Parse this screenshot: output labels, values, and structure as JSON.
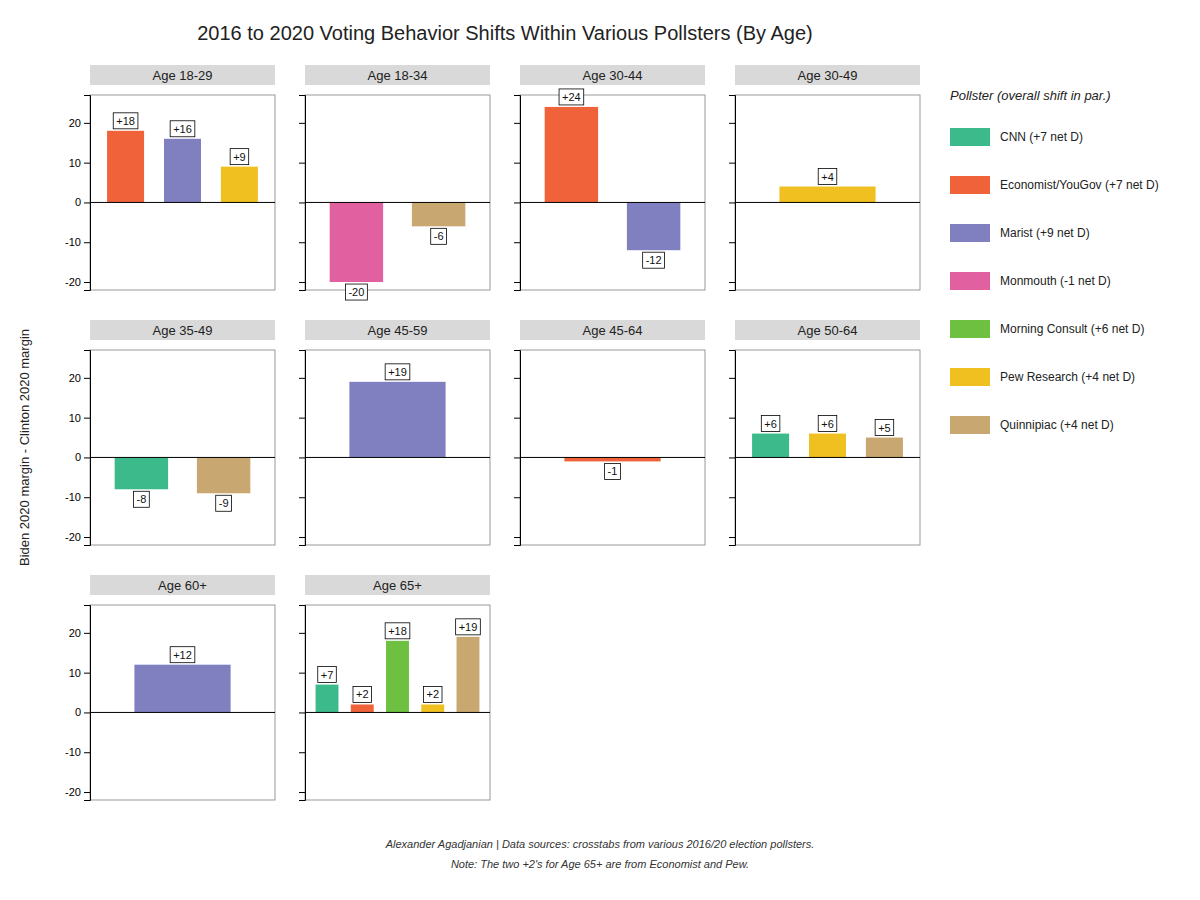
{
  "title": "2016 to 2020 Voting Behavior Shifts Within Various Pollsters (By Age)",
  "ylabel": "Biden 2020 margin - Clinton 2020 margin",
  "annotations": [
    "Alexander Agadjanian | Data sources: crosstabs from various 2016/20 election pollsters.",
    "Note: The two +2's for Age 65+ are from Economist and Pew."
  ],
  "legend": "right",
  "legend_title": "Pollster (overall shift in par.)",
  "series": [
    {
      "name": "CNN (+7 net D)",
      "color": "#3dba8c"
    },
    {
      "name": "Economist/YouGov (+7 net D)",
      "color": "#f0623a"
    },
    {
      "name": "Marist (+9 net D)",
      "color": "#8080c0"
    },
    {
      "name": "Monmouth (-1 net D)",
      "color": "#e060a0"
    },
    {
      "name": "Morning Consult (+6 net D)",
      "color": "#6dc040"
    },
    {
      "name": "Pew Research (+4 net D)",
      "color": "#f0c020"
    },
    {
      "name": "Quinnipiac (+4 net D)",
      "color": "#c8a870"
    }
  ],
  "chart_data": [
    {
      "type": "bar",
      "title": "Age 18-29",
      "categories": [
        null,
        null,
        null
      ],
      "values": [
        18,
        16,
        9
      ],
      "value_labels": [
        "+18",
        "+16",
        "+9"
      ],
      "colors": [
        "#f0623a",
        "#8080c0",
        "#f0c020"
      ],
      "data_labels": true,
      "ylim": [
        -22,
        27
      ],
      "yticks": [
        -20,
        -10,
        0,
        10,
        20
      ],
      "tick_labels": "y"
    },
    {
      "type": "bar",
      "title": "Age 18-34",
      "categories": [
        null,
        null
      ],
      "values": [
        -20,
        -6
      ],
      "value_labels": [
        "-20",
        "-6"
      ],
      "colors": [
        "#e060a0",
        "#c8a870"
      ],
      "data_labels": true,
      "ylim": [
        -22,
        27
      ],
      "yticks": [
        -20,
        -10,
        0,
        10,
        20
      ],
      "tick_labels": false
    },
    {
      "type": "bar",
      "title": "Age 30-44",
      "categories": [
        null,
        null
      ],
      "values": [
        24,
        -12
      ],
      "value_labels": [
        "+24",
        "-12"
      ],
      "colors": [
        "#f0623a",
        "#8080c0"
      ],
      "data_labels": true,
      "ylim": [
        -22,
        27
      ],
      "yticks": [
        -20,
        -10,
        0,
        10,
        20
      ],
      "tick_labels": false
    },
    {
      "type": "bar",
      "title": "Age 30-49",
      "categories": [
        null
      ],
      "values": [
        4
      ],
      "value_labels": [
        "+4"
      ],
      "colors": [
        "#f0c020"
      ],
      "data_labels": true,
      "ylim": [
        -22,
        27
      ],
      "yticks": [
        -20,
        -10,
        0,
        10,
        20
      ],
      "tick_labels": false
    },
    {
      "type": "bar",
      "title": "Age 35-49",
      "categories": [
        null,
        null
      ],
      "values": [
        -8,
        -9
      ],
      "value_labels": [
        "-8",
        "-9"
      ],
      "colors": [
        "#3dba8c",
        "#c8a870"
      ],
      "data_labels": true,
      "ylim": [
        -22,
        27
      ],
      "yticks": [
        -20,
        -10,
        0,
        10,
        20
      ],
      "tick_labels": "y"
    },
    {
      "type": "bar",
      "title": "Age 45-59",
      "categories": [
        null
      ],
      "values": [
        19
      ],
      "value_labels": [
        "+19"
      ],
      "colors": [
        "#8080c0"
      ],
      "data_labels": true,
      "ylim": [
        -22,
        27
      ],
      "yticks": [
        -20,
        -10,
        0,
        10,
        20
      ],
      "tick_labels": false
    },
    {
      "type": "bar",
      "title": "Age 45-64",
      "categories": [
        null
      ],
      "values": [
        -1
      ],
      "value_labels": [
        "-1"
      ],
      "colors": [
        "#f0623a"
      ],
      "data_labels": true,
      "ylim": [
        -22,
        27
      ],
      "yticks": [
        -20,
        -10,
        0,
        10,
        20
      ],
      "tick_labels": false
    },
    {
      "type": "bar",
      "title": "Age 50-64",
      "categories": [
        null,
        null,
        null
      ],
      "values": [
        6,
        6,
        5
      ],
      "value_labels": [
        "+6",
        "+6",
        "+5"
      ],
      "colors": [
        "#3dba8c",
        "#f0c020",
        "#c8a870"
      ],
      "data_labels": true,
      "ylim": [
        -22,
        27
      ],
      "yticks": [
        -20,
        -10,
        0,
        10,
        20
      ],
      "tick_labels": false
    },
    {
      "type": "bar",
      "title": "Age 60+",
      "categories": [
        null
      ],
      "values": [
        12
      ],
      "value_labels": [
        "+12"
      ],
      "colors": [
        "#8080c0"
      ],
      "data_labels": true,
      "ylim": [
        -22,
        27
      ],
      "yticks": [
        -20,
        -10,
        0,
        10,
        20
      ],
      "tick_labels": "y"
    },
    {
      "type": "bar",
      "title": "Age 65+",
      "categories": [
        null,
        null,
        null,
        null,
        null
      ],
      "values": [
        7,
        2,
        18,
        2,
        19
      ],
      "value_labels": [
        "+7",
        "+2",
        "+18",
        "+2",
        "+19"
      ],
      "colors": [
        "#3dba8c",
        "#f0623a",
        "#6dc040",
        "#f0c020",
        "#c8a870"
      ],
      "data_labels": true,
      "ylim": [
        -22,
        27
      ],
      "yticks": [
        -20,
        -10,
        0,
        10,
        20
      ],
      "tick_labels": false
    }
  ]
}
